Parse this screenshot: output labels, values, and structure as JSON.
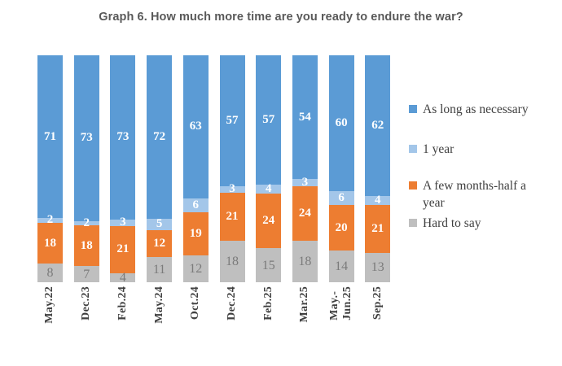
{
  "chart_data": {
    "type": "bar",
    "stacked": true,
    "normalized_to_100": true,
    "title": "Graph 6. How much more time are you ready to endure the war?",
    "xlabel": "",
    "ylabel": "",
    "grid": false,
    "value_labels": true,
    "legend_position": "right",
    "categories": [
      "May.22",
      "Dec.23",
      "Feb.24",
      "May.24",
      "Oct.24",
      "Dec.24",
      "Feb.25",
      "Mar.25",
      "May.-Jun.25",
      "Sep.25"
    ],
    "categories_display": [
      [
        "May.22"
      ],
      [
        "Dec.23"
      ],
      [
        "Feb.24"
      ],
      [
        "May.24"
      ],
      [
        "Oct.24"
      ],
      [
        "Dec.24"
      ],
      [
        "Feb.25"
      ],
      [
        "Mar.25"
      ],
      [
        "May.-",
        "Jun.25"
      ],
      [
        "Sep.25"
      ]
    ],
    "series": [
      {
        "name": "As long as necessary",
        "color": "#5B9BD5",
        "value_label_style": "white-bold",
        "values": [
          71,
          73,
          73,
          72,
          63,
          57,
          57,
          54,
          60,
          62
        ]
      },
      {
        "name": "1 year",
        "color": "#A3C6E9",
        "value_label_style": "white-bold",
        "values": [
          2,
          2,
          3,
          5,
          6,
          3,
          4,
          3,
          6,
          4
        ]
      },
      {
        "name": "A few months-half a year",
        "color": "#ED7D31",
        "value_label_style": "white-bold",
        "values": [
          18,
          18,
          21,
          12,
          19,
          21,
          24,
          24,
          20,
          21
        ]
      },
      {
        "name": "Hard to say",
        "color": "#BFBFBF",
        "value_label_style": "muted-gray",
        "values": [
          8,
          7,
          4,
          11,
          12,
          18,
          15,
          18,
          14,
          13
        ]
      }
    ]
  },
  "legend": {
    "items": [
      {
        "label": "As long as necessary",
        "color": "#5B9BD5"
      },
      {
        "label": "1 year",
        "color": "#A3C6E9"
      },
      {
        "label": "A few months-half a year",
        "color": "#ED7D31"
      },
      {
        "label": "Hard to say",
        "color": "#BFBFBF"
      }
    ]
  },
  "colors": {
    "title_text": "#595959",
    "axis_label_text": "#3F3F3F",
    "legend_text": "#404040",
    "muted_value_text": "#7B7B7B",
    "white_value_text": "#FFFFFF",
    "background": "#FFFFFF"
  }
}
